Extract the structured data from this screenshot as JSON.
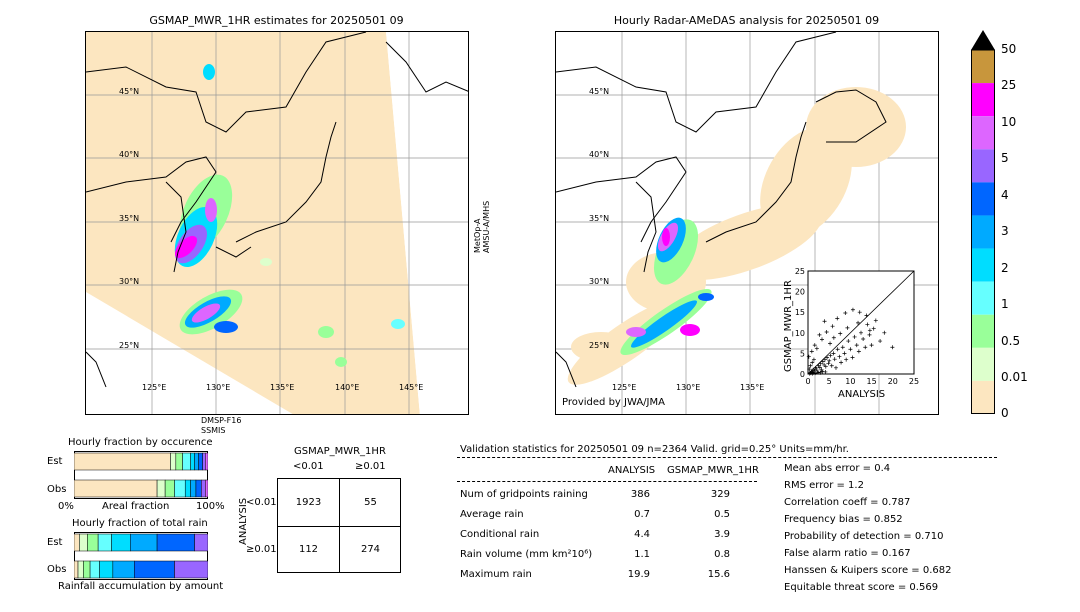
{
  "left_map": {
    "title": "GSMAP_MWR_1HR estimates for 20250501 09",
    "lat_labels": [
      "45°N",
      "40°N",
      "35°N",
      "30°N",
      "25°N"
    ],
    "lon_labels": [
      "125°E",
      "130°E",
      "135°E",
      "140°E",
      "145°E"
    ],
    "sensor_right": "MetOp-A\nAMSU-A/MHS",
    "sensor_bottom_1": "DMSP-F16",
    "sensor_bottom_2": "SSMIS"
  },
  "right_map": {
    "title": "Hourly Radar-AMeDAS analysis for 20250501 09",
    "lat_labels": [
      "45°N",
      "40°N",
      "35°N",
      "30°N",
      "25°N"
    ],
    "lon_labels": [
      "125°E",
      "130°E",
      "135°E"
    ],
    "credit": "Provided by JWA/JMA"
  },
  "colorbar": {
    "labels": [
      "50",
      "25",
      "10",
      "5",
      "4",
      "3",
      "2",
      "1",
      "0.5",
      "0.01",
      "0"
    ],
    "colors": [
      "#c8963c",
      "#ff00ff",
      "#dd66ff",
      "#9966ff",
      "#0066ff",
      "#00aaff",
      "#00ddff",
      "#66ffff",
      "#99ff99",
      "#ddffcc",
      "#fce6c0"
    ],
    "extend_color": "#000000"
  },
  "fraction_charts": {
    "occurrence_title": "Hourly fraction by occurence",
    "amount_title": "Hourly fraction of total rain",
    "est_label": "Est",
    "obs_label": "Obs",
    "x_left": "0%",
    "x_mid": "Areal fraction",
    "x_right": "100%",
    "amount_xlabel": "Rainfall accumulation by amount",
    "occurrence_est": [
      0.72,
      0.04,
      0.05,
      0.06,
      0.03,
      0.03,
      0.03,
      0.02,
      0.02
    ],
    "occurrence_obs": [
      0.62,
      0.06,
      0.07,
      0.08,
      0.04,
      0.04,
      0.04,
      0.03,
      0.02
    ],
    "amount_est": [
      0.04,
      0.06,
      0.08,
      0.1,
      0.14,
      0.2,
      0.28,
      0.1
    ],
    "amount_obs": [
      0.03,
      0.04,
      0.05,
      0.07,
      0.1,
      0.16,
      0.3,
      0.25
    ],
    "segment_colors": [
      "#fce6c0",
      "#ddffcc",
      "#99ff99",
      "#66ffff",
      "#00ddff",
      "#00aaff",
      "#0066ff",
      "#9966ff",
      "#dd66ff",
      "#ff00ff"
    ]
  },
  "contingency": {
    "title": "GSMAP_MWR_1HR",
    "col_lt": "<0.01",
    "col_ge": "≥0.01",
    "row_lt": "<0.01",
    "row_ge": "≥0.01",
    "side_label": "ANALYSIS",
    "cells": [
      "1923",
      "55",
      "112",
      "274"
    ]
  },
  "scatter": {
    "ylabel": "GSMAP_MWR_1HR",
    "xlabel": "ANALYSIS",
    "ticks": [
      "0",
      "5",
      "10",
      "15",
      "20",
      "25"
    ],
    "xlim": [
      0,
      25
    ],
    "ylim": [
      0,
      25
    ]
  },
  "validation": {
    "header": "Validation statistics for 20250501 09  n=2364 Valid. grid=0.25° Units=mm/hr.",
    "col_analysis": "ANALYSIS",
    "col_gsmap": "GSMAP_MWR_1HR",
    "rows": [
      {
        "label": "Num of gridpoints raining",
        "a": "386",
        "g": "329"
      },
      {
        "label": "Average rain",
        "a": "0.7",
        "g": "0.5"
      },
      {
        "label": "Conditional rain",
        "a": "4.4",
        "g": "3.9"
      },
      {
        "label": "Rain volume (mm km²10⁶)",
        "a": "1.1",
        "g": "0.8"
      },
      {
        "label": "Maximum rain",
        "a": "19.9",
        "g": "15.6"
      }
    ],
    "scores": [
      "Mean abs error =    0.4",
      "RMS error =    1.2",
      "Correlation coeff =  0.787",
      "Frequency bias =  0.852",
      "Probability of detection =  0.710",
      "False alarm ratio =  0.167",
      "Hanssen & Kuipers score =  0.682",
      "Equitable threat score =  0.569"
    ]
  },
  "chart_data": [
    {
      "type": "scatter",
      "title": "",
      "xlabel": "ANALYSIS",
      "ylabel": "GSMAP_MWR_1HR",
      "xlim": [
        0,
        25
      ],
      "ylim": [
        0,
        25
      ],
      "points": [
        [
          0.5,
          0.3
        ],
        [
          0.8,
          0.6
        ],
        [
          1.0,
          0.4
        ],
        [
          1.2,
          1.0
        ],
        [
          1.5,
          0.8
        ],
        [
          1.8,
          1.5
        ],
        [
          2.0,
          1.2
        ],
        [
          2.2,
          0.5
        ],
        [
          2.5,
          2.0
        ],
        [
          2.8,
          1.6
        ],
        [
          3.0,
          2.5
        ],
        [
          3.2,
          1.0
        ],
        [
          3.5,
          3.0
        ],
        [
          3.8,
          2.2
        ],
        [
          4.0,
          3.5
        ],
        [
          4.2,
          1.8
        ],
        [
          4.5,
          4.0
        ],
        [
          4.8,
          2.6
        ],
        [
          5.0,
          3.2
        ],
        [
          5.3,
          4.5
        ],
        [
          5.6,
          2.0
        ],
        [
          6.0,
          5.0
        ],
        [
          6.3,
          3.6
        ],
        [
          6.6,
          1.5
        ],
        [
          7.0,
          6.0
        ],
        [
          7.4,
          4.2
        ],
        [
          7.8,
          2.8
        ],
        [
          8.2,
          6.5
        ],
        [
          8.6,
          5.0
        ],
        [
          9.0,
          3.5
        ],
        [
          9.5,
          8.0
        ],
        [
          10.0,
          6.0
        ],
        [
          10.5,
          4.0
        ],
        [
          11.0,
          9.0
        ],
        [
          11.5,
          7.0
        ],
        [
          12.0,
          5.5
        ],
        [
          12.5,
          10.0
        ],
        [
          13.0,
          8.5
        ],
        [
          13.5,
          6.5
        ],
        [
          14.0,
          12.0
        ],
        [
          14.5,
          9.5
        ],
        [
          15.0,
          7.0
        ],
        [
          15.5,
          11.0
        ],
        [
          16.0,
          13.0
        ],
        [
          17.0,
          8.0
        ],
        [
          18.0,
          10.0
        ],
        [
          19.9,
          6.5
        ],
        [
          0.3,
          1.2
        ],
        [
          0.6,
          2.0
        ],
        [
          1.0,
          2.8
        ],
        [
          1.4,
          3.5
        ],
        [
          0.2,
          4.2
        ],
        [
          0.9,
          5.5
        ],
        [
          2.1,
          6.2
        ],
        [
          1.6,
          7.0
        ],
        [
          3.3,
          8.4
        ],
        [
          2.7,
          9.5
        ],
        [
          4.4,
          10.2
        ],
        [
          5.8,
          11.6
        ],
        [
          3.9,
          12.8
        ],
        [
          6.9,
          13.5
        ],
        [
          8.8,
          14.8
        ],
        [
          10.6,
          15.6
        ],
        [
          12.2,
          15.0
        ],
        [
          7.6,
          9.8
        ],
        [
          9.3,
          11.2
        ],
        [
          11.8,
          12.4
        ],
        [
          13.8,
          14.2
        ],
        [
          14.6,
          10.6
        ],
        [
          5.2,
          7.4
        ],
        [
          6.1,
          8.8
        ],
        [
          0.4,
          0.1
        ],
        [
          0.7,
          0.2
        ],
        [
          1.1,
          0.1
        ],
        [
          1.3,
          0.3
        ],
        [
          1.7,
          0.2
        ],
        [
          2.4,
          0.4
        ],
        [
          2.9,
          0.3
        ],
        [
          3.4,
          0.6
        ],
        [
          4.1,
          0.5
        ]
      ]
    },
    {
      "type": "bar",
      "title": "Hourly fraction by occurence",
      "categories": [
        "Est",
        "Obs"
      ],
      "series": [
        {
          "values": [
            0.72,
            0.62
          ]
        },
        {
          "values": [
            0.04,
            0.06
          ]
        },
        {
          "values": [
            0.05,
            0.07
          ]
        },
        {
          "values": [
            0.06,
            0.08
          ]
        },
        {
          "values": [
            0.03,
            0.04
          ]
        },
        {
          "values": [
            0.03,
            0.04
          ]
        },
        {
          "values": [
            0.03,
            0.04
          ]
        },
        {
          "values": [
            0.02,
            0.03
          ]
        },
        {
          "values": [
            0.02,
            0.02
          ]
        }
      ],
      "xlabel": "Areal fraction"
    },
    {
      "type": "bar",
      "title": "Hourly fraction of total rain",
      "categories": [
        "Est",
        "Obs"
      ],
      "series": [
        {
          "values": [
            0.04,
            0.03
          ]
        },
        {
          "values": [
            0.06,
            0.04
          ]
        },
        {
          "values": [
            0.08,
            0.05
          ]
        },
        {
          "values": [
            0.1,
            0.07
          ]
        },
        {
          "values": [
            0.14,
            0.1
          ]
        },
        {
          "values": [
            0.2,
            0.16
          ]
        },
        {
          "values": [
            0.28,
            0.3
          ]
        },
        {
          "values": [
            0.1,
            0.25
          ]
        }
      ],
      "xlabel": "Rainfall accumulation by amount"
    }
  ]
}
